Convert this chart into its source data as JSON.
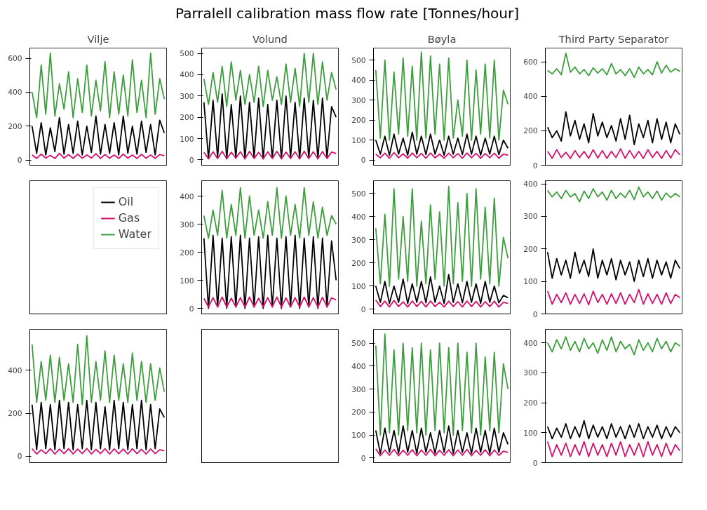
{
  "chart_data": [
    {
      "type": "line",
      "title": "Vilje",
      "annotations": [
        "Parralell calibration mass flow rate [Tonnes/hour]"
      ],
      "categories": [
        null,
        null,
        null,
        null,
        null,
        null,
        null,
        null,
        null,
        null,
        null,
        null,
        null,
        null,
        null,
        null,
        null,
        null,
        null,
        null,
        null,
        null,
        null,
        null,
        null,
        null,
        null,
        null,
        null,
        null
      ],
      "ylim": [
        -30,
        660
      ],
      "yticks": [
        0,
        200,
        400,
        600
      ],
      "tick_labels": "y",
      "legend": "bottom",
      "series": [
        {
          "name": "Oil",
          "color": "#000000",
          "values": [
            200,
            40,
            220,
            30,
            190,
            50,
            250,
            35,
            210,
            40,
            230,
            30,
            200,
            45,
            260,
            35,
            210,
            40,
            220,
            30,
            260,
            40,
            200,
            35,
            230,
            45,
            210,
            30,
            235,
            160
          ]
        },
        {
          "name": "Gas",
          "color": "#d4106f",
          "values": [
            30,
            10,
            35,
            12,
            28,
            10,
            40,
            12,
            32,
            10,
            35,
            11,
            30,
            12,
            38,
            10,
            33,
            11,
            30,
            10,
            35,
            12,
            30,
            10,
            34,
            11,
            30,
            10,
            33,
            25
          ]
        },
        {
          "name": "Water",
          "color": "#3d9e3d",
          "values": [
            400,
            250,
            560,
            270,
            630,
            260,
            450,
            300,
            520,
            250,
            480,
            280,
            560,
            260,
            470,
            290,
            580,
            250,
            520,
            270,
            500,
            260,
            590,
            280,
            470,
            250,
            630,
            270,
            480,
            360
          ]
        }
      ]
    },
    {
      "type": "line",
      "title": "Volund",
      "categories": [
        null,
        null,
        null,
        null,
        null,
        null,
        null,
        null,
        null,
        null,
        null,
        null,
        null,
        null,
        null,
        null,
        null,
        null,
        null,
        null,
        null,
        null,
        null,
        null,
        null,
        null,
        null,
        null,
        null,
        null
      ],
      "ylim": [
        -25,
        525
      ],
      "yticks": [
        0,
        100,
        200,
        300,
        400,
        500
      ],
      "tick_labels": "y",
      "series": [
        {
          "color": "#3d9e3d",
          "values": [
            380,
            260,
            410,
            270,
            440,
            250,
            460,
            280,
            420,
            260,
            400,
            270,
            440,
            250,
            420,
            280,
            390,
            260,
            450,
            270,
            430,
            250,
            500,
            270,
            500,
            260,
            460,
            280,
            410,
            330
          ]
        },
        {
          "color": "#000000",
          "values": [
            270,
            5,
            280,
            10,
            310,
            5,
            260,
            8,
            300,
            5,
            270,
            10,
            290,
            5,
            260,
            8,
            280,
            5,
            300,
            10,
            270,
            5,
            290,
            8,
            280,
            5,
            290,
            10,
            250,
            200
          ]
        },
        {
          "color": "#d4106f",
          "values": [
            35,
            5,
            38,
            6,
            40,
            5,
            36,
            8,
            38,
            5,
            40,
            6,
            36,
            5,
            38,
            6,
            40,
            5,
            37,
            6,
            38,
            5,
            40,
            6,
            38,
            5,
            39,
            6,
            37,
            30
          ]
        }
      ]
    },
    {
      "type": "line",
      "title": "Bøyla",
      "categories": [
        null,
        null,
        null,
        null,
        null,
        null,
        null,
        null,
        null,
        null,
        null,
        null,
        null,
        null,
        null,
        null,
        null,
        null,
        null,
        null,
        null,
        null,
        null,
        null,
        null,
        null,
        null,
        null,
        null,
        null
      ],
      "ylim": [
        -25,
        560
      ],
      "yticks": [
        0,
        100,
        200,
        300,
        400,
        500
      ],
      "tick_labels": "y",
      "series": [
        {
          "color": "#3d9e3d",
          "values": [
            450,
            110,
            500,
            100,
            440,
            130,
            510,
            120,
            470,
            100,
            540,
            110,
            520,
            130,
            480,
            100,
            510,
            110,
            300,
            120,
            500,
            100,
            450,
            130,
            480,
            110,
            500,
            100,
            350,
            280
          ]
        },
        {
          "color": "#000000",
          "values": [
            100,
            30,
            120,
            25,
            130,
            30,
            110,
            25,
            140,
            30,
            120,
            28,
            130,
            30,
            100,
            25,
            120,
            30,
            110,
            28,
            130,
            30,
            120,
            25,
            110,
            30,
            120,
            28,
            100,
            60
          ]
        },
        {
          "color": "#d4106f",
          "values": [
            30,
            12,
            35,
            10,
            38,
            12,
            32,
            10,
            36,
            12,
            34,
            10,
            36,
            12,
            30,
            10,
            35,
            12,
            33,
            10,
            36,
            12,
            34,
            10,
            33,
            12,
            35,
            10,
            30,
            25
          ]
        }
      ]
    },
    {
      "type": "line",
      "title": "Third Party Separator",
      "categories": [
        null,
        null,
        null,
        null,
        null,
        null,
        null,
        null,
        null,
        null,
        null,
        null,
        null,
        null,
        null,
        null,
        null,
        null,
        null,
        null,
        null,
        null,
        null,
        null,
        null,
        null,
        null,
        null,
        null,
        null
      ],
      "ylim": [
        0,
        680
      ],
      "yticks": [
        0,
        200,
        400,
        600
      ],
      "tick_labels": "y",
      "series": [
        {
          "color": "#3d9e3d",
          "values": [
            550,
            530,
            560,
            525,
            650,
            540,
            570,
            530,
            555,
            520,
            565,
            535,
            560,
            525,
            590,
            530,
            555,
            520,
            560,
            510,
            570,
            530,
            555,
            525,
            600,
            535,
            580,
            540,
            560,
            545
          ]
        },
        {
          "color": "#000000",
          "values": [
            220,
            160,
            200,
            140,
            310,
            170,
            260,
            150,
            240,
            130,
            300,
            170,
            250,
            160,
            230,
            140,
            270,
            150,
            290,
            120,
            240,
            160,
            260,
            130,
            270,
            150,
            250,
            130,
            240,
            180
          ]
        },
        {
          "color": "#d4106f",
          "values": [
            80,
            40,
            90,
            45,
            75,
            40,
            85,
            45,
            80,
            40,
            90,
            42,
            85,
            40,
            80,
            45,
            95,
            40,
            85,
            42,
            80,
            40,
            90,
            45,
            80,
            40,
            85,
            42,
            90,
            60
          ]
        }
      ]
    },
    {
      "type": "other"
    },
    {
      "type": "line",
      "categories": [
        null,
        null,
        null,
        null,
        null,
        null,
        null,
        null,
        null,
        null,
        null,
        null,
        null,
        null,
        null,
        null,
        null,
        null,
        null,
        null,
        null,
        null,
        null,
        null,
        null,
        null,
        null,
        null,
        null,
        null
      ],
      "ylim": [
        -20,
        455
      ],
      "yticks": [
        0,
        100,
        200,
        300,
        400
      ],
      "tick_labels": "y",
      "series": [
        {
          "color": "#3d9e3d",
          "values": [
            330,
            250,
            350,
            260,
            420,
            250,
            370,
            260,
            430,
            250,
            400,
            260,
            350,
            250,
            380,
            260,
            430,
            250,
            400,
            260,
            370,
            250,
            430,
            260,
            380,
            250,
            360,
            260,
            330,
            300
          ]
        },
        {
          "color": "#000000",
          "values": [
            250,
            0,
            260,
            5,
            250,
            0,
            255,
            5,
            260,
            0,
            250,
            5,
            255,
            0,
            260,
            5,
            250,
            0,
            255,
            5,
            260,
            0,
            250,
            5,
            255,
            0,
            250,
            5,
            240,
            100
          ]
        },
        {
          "color": "#d4106f",
          "values": [
            35,
            5,
            38,
            5,
            40,
            5,
            36,
            5,
            38,
            5,
            40,
            5,
            36,
            5,
            38,
            5,
            40,
            5,
            37,
            5,
            38,
            5,
            40,
            5,
            38,
            5,
            39,
            5,
            37,
            30
          ]
        }
      ]
    },
    {
      "type": "line",
      "categories": [
        null,
        null,
        null,
        null,
        null,
        null,
        null,
        null,
        null,
        null,
        null,
        null,
        null,
        null,
        null,
        null,
        null,
        null,
        null,
        null,
        null,
        null,
        null,
        null,
        null,
        null,
        null,
        null,
        null,
        null
      ],
      "ylim": [
        -20,
        555
      ],
      "yticks": [
        0,
        100,
        200,
        300,
        400,
        500
      ],
      "tick_labels": "y",
      "series": [
        {
          "color": "#3d9e3d",
          "values": [
            350,
            110,
            410,
            100,
            520,
            130,
            400,
            120,
            520,
            100,
            380,
            110,
            450,
            130,
            420,
            100,
            530,
            110,
            460,
            120,
            500,
            100,
            520,
            130,
            440,
            110,
            480,
            100,
            310,
            220
          ]
        },
        {
          "color": "#000000",
          "values": [
            100,
            30,
            120,
            25,
            100,
            30,
            130,
            25,
            110,
            30,
            120,
            28,
            140,
            30,
            100,
            25,
            150,
            30,
            110,
            28,
            120,
            30,
            110,
            25,
            120,
            30,
            100,
            28,
            60,
            50
          ]
        },
        {
          "color": "#d4106f",
          "values": [
            40,
            12,
            35,
            10,
            38,
            12,
            32,
            10,
            36,
            12,
            34,
            10,
            36,
            12,
            30,
            10,
            35,
            12,
            33,
            10,
            36,
            12,
            34,
            10,
            33,
            12,
            35,
            10,
            30,
            25
          ]
        }
      ]
    },
    {
      "type": "line",
      "categories": [
        null,
        null,
        null,
        null,
        null,
        null,
        null,
        null,
        null,
        null,
        null,
        null,
        null,
        null,
        null,
        null,
        null,
        null,
        null,
        null,
        null,
        null,
        null,
        null,
        null,
        null,
        null,
        null,
        null,
        null
      ],
      "ylim": [
        0,
        410
      ],
      "yticks": [
        0,
        100,
        200,
        300,
        400
      ],
      "tick_labels": "y",
      "series": [
        {
          "color": "#3d9e3d",
          "values": [
            380,
            360,
            375,
            355,
            380,
            360,
            370,
            345,
            378,
            355,
            385,
            360,
            375,
            350,
            380,
            355,
            372,
            358,
            380,
            352,
            390,
            360,
            375,
            355,
            378,
            350,
            372,
            358,
            370,
            360
          ]
        },
        {
          "color": "#000000",
          "values": [
            190,
            110,
            170,
            120,
            165,
            110,
            190,
            125,
            165,
            115,
            200,
            110,
            165,
            120,
            170,
            105,
            165,
            120,
            160,
            100,
            165,
            115,
            170,
            110,
            165,
            120,
            160,
            110,
            165,
            140
          ]
        },
        {
          "color": "#d4106f",
          "values": [
            70,
            30,
            60,
            35,
            65,
            30,
            60,
            32,
            62,
            28,
            70,
            35,
            60,
            30,
            62,
            32,
            65,
            30,
            60,
            35,
            75,
            30,
            62,
            32,
            60,
            30,
            65,
            32,
            60,
            50
          ]
        }
      ]
    },
    {
      "type": "line",
      "categories": [
        null,
        null,
        null,
        null,
        null,
        null,
        null,
        null,
        null,
        null,
        null,
        null,
        null,
        null,
        null,
        null,
        null,
        null,
        null,
        null,
        null,
        null,
        null,
        null,
        null,
        null,
        null,
        null,
        null,
        null
      ],
      "ylim": [
        -30,
        590
      ],
      "yticks": [
        0,
        200,
        400
      ],
      "tick_labels": "y",
      "series": [
        {
          "color": "#3d9e3d",
          "values": [
            520,
            250,
            440,
            260,
            470,
            250,
            460,
            260,
            430,
            250,
            520,
            240,
            560,
            250,
            440,
            260,
            490,
            250,
            470,
            260,
            430,
            250,
            480,
            260,
            440,
            250,
            430,
            260,
            410,
            300
          ]
        },
        {
          "color": "#000000",
          "values": [
            240,
            30,
            250,
            35,
            240,
            30,
            260,
            35,
            250,
            30,
            240,
            35,
            260,
            30,
            250,
            35,
            230,
            30,
            260,
            35,
            250,
            30,
            240,
            35,
            260,
            30,
            240,
            35,
            220,
            180
          ]
        },
        {
          "color": "#d4106f",
          "values": [
            35,
            10,
            30,
            12,
            35,
            10,
            33,
            12,
            35,
            10,
            33,
            12,
            36,
            10,
            32,
            12,
            35,
            10,
            34,
            12,
            33,
            10,
            35,
            12,
            32,
            10,
            34,
            12,
            30,
            25
          ]
        }
      ]
    },
    {
      "type": "other"
    },
    {
      "type": "line",
      "categories": [
        null,
        null,
        null,
        null,
        null,
        null,
        null,
        null,
        null,
        null,
        null,
        null,
        null,
        null,
        null,
        null,
        null,
        null,
        null,
        null,
        null,
        null,
        null,
        null,
        null,
        null,
        null,
        null,
        null,
        null
      ],
      "ylim": [
        -20,
        560
      ],
      "yticks": [
        0,
        100,
        200,
        300,
        400,
        500
      ],
      "tick_labels": "y",
      "series": [
        {
          "color": "#3d9e3d",
          "values": [
            490,
            100,
            540,
            110,
            470,
            100,
            500,
            120,
            480,
            110,
            500,
            100,
            470,
            120,
            500,
            110,
            480,
            100,
            500,
            120,
            460,
            110,
            500,
            100,
            440,
            120,
            460,
            110,
            410,
            300
          ]
        },
        {
          "color": "#000000",
          "values": [
            120,
            20,
            130,
            25,
            120,
            20,
            140,
            25,
            120,
            20,
            130,
            25,
            110,
            20,
            120,
            25,
            140,
            20,
            120,
            25,
            110,
            20,
            130,
            25,
            120,
            20,
            130,
            25,
            110,
            60
          ]
        },
        {
          "color": "#d4106f",
          "values": [
            40,
            10,
            35,
            12,
            38,
            10,
            34,
            12,
            36,
            10,
            35,
            12,
            38,
            10,
            34,
            12,
            36,
            10,
            35,
            12,
            38,
            10,
            34,
            12,
            36,
            10,
            35,
            12,
            30,
            25
          ]
        }
      ]
    },
    {
      "type": "line",
      "categories": [
        null,
        null,
        null,
        null,
        null,
        null,
        null,
        null,
        null,
        null,
        null,
        null,
        null,
        null,
        null,
        null,
        null,
        null,
        null,
        null,
        null,
        null,
        null,
        null,
        null,
        null,
        null,
        null,
        null,
        null
      ],
      "ylim": [
        0,
        445
      ],
      "yticks": [
        0,
        100,
        200,
        300,
        400
      ],
      "tick_labels": "y",
      "series": [
        {
          "color": "#3d9e3d",
          "values": [
            400,
            370,
            410,
            380,
            420,
            375,
            405,
            370,
            415,
            380,
            400,
            365,
            410,
            375,
            420,
            370,
            405,
            380,
            395,
            360,
            410,
            375,
            400,
            370,
            415,
            380,
            405,
            370,
            400,
            390
          ]
        },
        {
          "color": "#000000",
          "values": [
            120,
            80,
            115,
            85,
            130,
            80,
            120,
            85,
            140,
            80,
            125,
            85,
            120,
            80,
            130,
            85,
            120,
            80,
            125,
            85,
            130,
            80,
            120,
            85,
            125,
            80,
            120,
            85,
            120,
            100
          ]
        },
        {
          "color": "#d4106f",
          "values": [
            70,
            20,
            60,
            25,
            65,
            20,
            60,
            25,
            70,
            20,
            65,
            25,
            60,
            20,
            65,
            25,
            70,
            20,
            60,
            25,
            65,
            20,
            70,
            25,
            60,
            20,
            65,
            25,
            60,
            40
          ]
        }
      ]
    }
  ]
}
